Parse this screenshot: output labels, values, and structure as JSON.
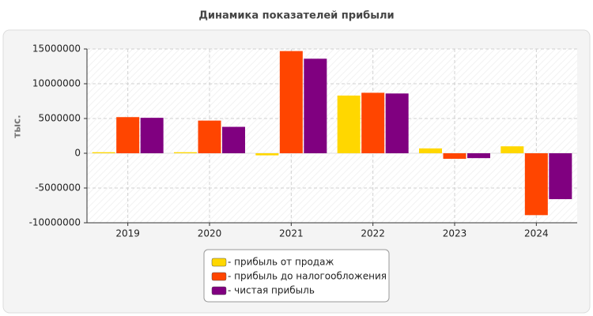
{
  "chart_data": {
    "type": "bar",
    "title": "Динамика показателей прибыли",
    "y_label": "тыс.",
    "categories": [
      "2019",
      "2020",
      "2021",
      "2022",
      "2023",
      "2024"
    ],
    "series": [
      {
        "name": "- прибыль от продаж",
        "color": "#ffd700",
        "values": [
          150000,
          150000,
          -300000,
          8300000,
          700000,
          1000000
        ]
      },
      {
        "name": "- прибыль до налогообложения",
        "color": "#ff4500",
        "values": [
          5200000,
          4700000,
          14700000,
          8700000,
          -800000,
          -8900000
        ]
      },
      {
        "name": "- чистая прибыль",
        "color": "#800080",
        "values": [
          5100000,
          3800000,
          13600000,
          8600000,
          -700000,
          -6600000
        ]
      }
    ],
    "ylim": [
      -10000000,
      15000000
    ],
    "yticks": [
      15000000,
      10000000,
      5000000,
      0,
      -5000000,
      -10000000
    ],
    "grid": true,
    "legend": "bottom"
  }
}
